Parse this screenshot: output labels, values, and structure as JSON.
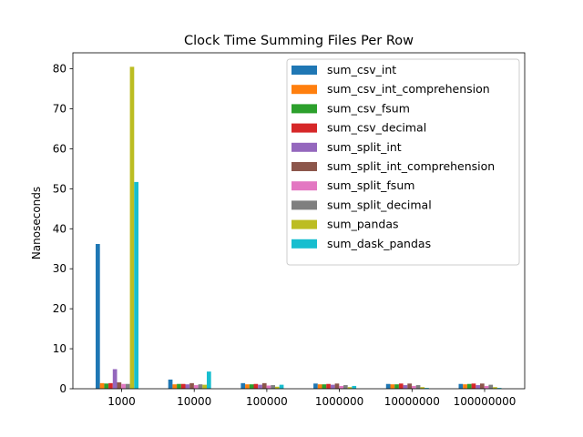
{
  "chart_data": {
    "type": "bar",
    "title": "Clock Time Summing Files Per Row",
    "xlabel": "",
    "ylabel": "Nanoseconds",
    "ylim": [
      0,
      84
    ],
    "yticks": [
      0,
      10,
      20,
      30,
      40,
      50,
      60,
      70,
      80
    ],
    "categories": [
      "1000",
      "10000",
      "100000",
      "1000000",
      "10000000",
      "100000000"
    ],
    "grid": false,
    "legend_position": "top-right",
    "series": [
      {
        "name": "sum_csv_int",
        "color": "#1f77b4",
        "values": [
          36.2,
          2.3,
          1.4,
          1.3,
          1.2,
          1.2
        ]
      },
      {
        "name": "sum_csv_int_comprehension",
        "color": "#ff7f0e",
        "values": [
          1.4,
          1.1,
          1.1,
          1.1,
          1.1,
          1.1
        ]
      },
      {
        "name": "sum_csv_fsum",
        "color": "#2ca02c",
        "values": [
          1.3,
          1.2,
          1.1,
          1.1,
          1.1,
          1.2
        ]
      },
      {
        "name": "sum_csv_decimal",
        "color": "#d62728",
        "values": [
          1.4,
          1.2,
          1.2,
          1.2,
          1.3,
          1.3
        ]
      },
      {
        "name": "sum_split_int",
        "color": "#9467bd",
        "values": [
          4.9,
          1.1,
          1.0,
          1.0,
          0.9,
          0.9
        ]
      },
      {
        "name": "sum_split_int_comprehension",
        "color": "#8c564b",
        "values": [
          1.6,
          1.4,
          1.4,
          1.3,
          1.3,
          1.3
        ]
      },
      {
        "name": "sum_split_fsum",
        "color": "#e377c2",
        "values": [
          1.2,
          0.9,
          0.8,
          0.7,
          0.7,
          0.7
        ]
      },
      {
        "name": "sum_split_decimal",
        "color": "#7f7f7f",
        "values": [
          1.2,
          1.1,
          0.9,
          0.9,
          0.9,
          1.0
        ]
      },
      {
        "name": "sum_pandas",
        "color": "#bcbd22",
        "values": [
          80.5,
          1.0,
          0.5,
          0.4,
          0.4,
          0.4
        ]
      },
      {
        "name": "sum_dask_pandas",
        "color": "#17becf",
        "values": [
          51.7,
          4.3,
          1.0,
          0.7,
          0.2,
          0.2
        ]
      }
    ]
  }
}
